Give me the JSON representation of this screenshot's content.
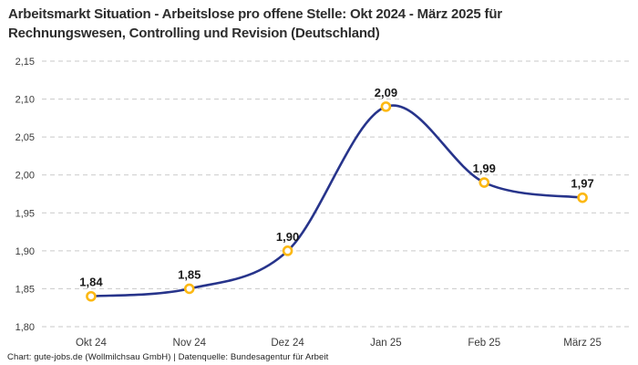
{
  "header": {
    "line1": "Arbeitsmarkt Situation - Arbeitslose pro offene Stelle: Okt 2024 - März 2025 für",
    "line2": "Rechnungswesen, Controlling und Revision (Deutschland)"
  },
  "footer": {
    "text": "Chart: gute-jobs.de (Wollmilchsau GmbH) | Datenquelle: Bundesagentur für Arbeit"
  },
  "chart_data": {
    "type": "line",
    "title": "Arbeitsmarkt Situation - Arbeitslose pro offene Stelle: Okt 2024 - März 2025 für Rechnungswesen, Controlling und Revision (Deutschland)",
    "categories": [
      "Okt 24",
      "Nov 24",
      "Dez 24",
      "Jan 25",
      "Feb 25",
      "März 25"
    ],
    "values": [
      1.84,
      1.85,
      1.9,
      2.09,
      1.99,
      1.97
    ],
    "point_labels": [
      "1,84",
      "1,85",
      "1,90",
      "2,09",
      "1,99",
      "1,97"
    ],
    "y_ticks": [
      2.15,
      2.1,
      2.05,
      2.0,
      1.95,
      1.9,
      1.85,
      1.8
    ],
    "y_tick_labels": [
      "2,15",
      "2,10",
      "2,05",
      "2,00",
      "1,95",
      "1,90",
      "1,85",
      "1,80"
    ],
    "ylim": [
      1.8,
      2.15
    ],
    "xlabel": "",
    "ylabel": "",
    "grid": "dashed-horizontal",
    "legend": "none",
    "colors": {
      "line": "#27348b",
      "marker_stroke": "#fcb813",
      "marker_fill": "#ffffff",
      "grid": "#c9c9c9",
      "title": "#2d2d2d",
      "tick": "#3a3a3a",
      "point_label": "#1a1a1a"
    }
  }
}
